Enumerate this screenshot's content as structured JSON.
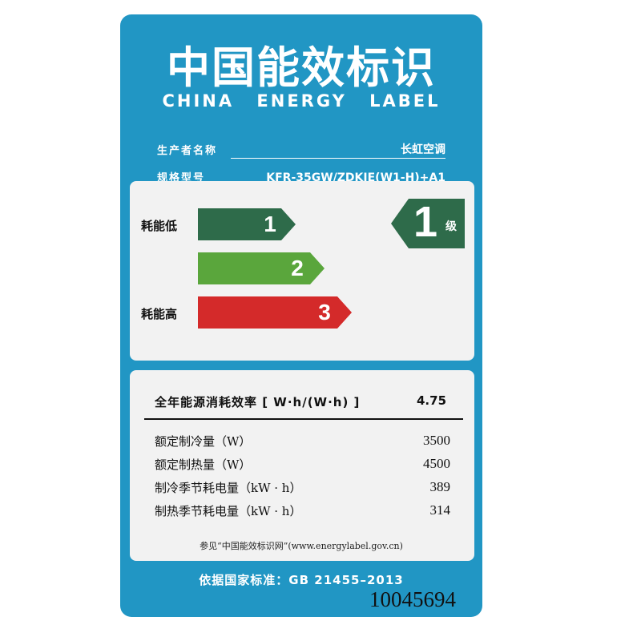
{
  "label": {
    "title_cn": "中国能效标识",
    "title_en": "CHINA ENERGY LABEL",
    "manufacturer_key": "生产者名称",
    "manufacturer_value": "长虹空调",
    "model_key": "规格型号",
    "model_value": "KFR-35GW/ZDKIE(W1-H)+A1"
  },
  "grades": {
    "low_label": "耗能低",
    "high_label": "耗能高",
    "levels": [
      "1",
      "2",
      "3"
    ],
    "colors": [
      "#2e6b4a",
      "#5aa63c",
      "#d42a2a"
    ],
    "current": "1",
    "current_unit": "级",
    "badge_color": "#2e6b4a"
  },
  "efficiency": {
    "name": "全年能源消耗效率 [ W·h/(W·h) ]",
    "value": "4.75"
  },
  "specs": [
    {
      "name": "额定制冷量（W）",
      "value": "3500"
    },
    {
      "name": "额定制热量（W）",
      "value": "4500"
    },
    {
      "name": "制冷季节耗电量（kW · h）",
      "value": "389"
    },
    {
      "name": "制热季节耗电量（kW · h）",
      "value": "314"
    }
  ],
  "footer": {
    "reference": "参见“中国能效标识网”(www.energylabel.gov.cn)",
    "standard": "依据国家标准：GB 21455–2013",
    "serial": "10045694"
  }
}
